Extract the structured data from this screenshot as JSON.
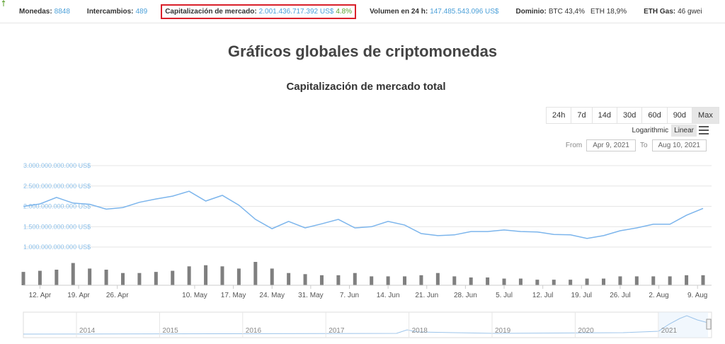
{
  "header": {
    "items": [
      {
        "label": "Monedas:",
        "value": "8848",
        "value_color": "#4a9fd8"
      },
      {
        "label": "Intercambios:",
        "value": "489",
        "value_color": "#4a9fd8"
      },
      {
        "label": "Capitalización de mercado:",
        "value": "2.001.436.717.392 US$",
        "change": "4.8%",
        "value_color": "#4a9fd8",
        "highlighted": true
      },
      {
        "label": "Volumen en 24 h:",
        "value": "147.485.543.096 US$",
        "value_color": "#4a9fd8"
      },
      {
        "label": "Dominio:",
        "value": "BTC 43,4%",
        "value2": "ETH 18,9%",
        "value_color": "#333333"
      },
      {
        "label": "ETH Gas:",
        "value": "46 gwei",
        "value_color": "#333333"
      }
    ]
  },
  "page_title": "Gráficos globales de criptomonedas",
  "chart_data": {
    "type": "line",
    "title": "Capitalización de mercado total",
    "ranges": [
      {
        "label": "24h",
        "active": false
      },
      {
        "label": "7d",
        "active": false
      },
      {
        "label": "14d",
        "active": false
      },
      {
        "label": "30d",
        "active": false
      },
      {
        "label": "60d",
        "active": false
      },
      {
        "label": "90d",
        "active": false
      },
      {
        "label": "Max",
        "active": true
      }
    ],
    "scales": [
      {
        "label": "Logarithmic",
        "active": false
      },
      {
        "label": "Linear",
        "active": true
      }
    ],
    "log_scale": false,
    "from_label": "From",
    "from": "Apr 9, 2021",
    "to_label": "To",
    "to": "Aug 10, 2021",
    "x": [
      "2021-04-09",
      "2021-04-12",
      "2021-04-15",
      "2021-04-18",
      "2021-04-21",
      "2021-04-24",
      "2021-04-27",
      "2021-04-30",
      "2021-05-03",
      "2021-05-06",
      "2021-05-09",
      "2021-05-12",
      "2021-05-15",
      "2021-05-18",
      "2021-05-21",
      "2021-05-24",
      "2021-05-27",
      "2021-05-30",
      "2021-06-02",
      "2021-06-05",
      "2021-06-08",
      "2021-06-11",
      "2021-06-14",
      "2021-06-17",
      "2021-06-20",
      "2021-06-23",
      "2021-06-26",
      "2021-06-29",
      "2021-07-02",
      "2021-07-05",
      "2021-07-08",
      "2021-07-11",
      "2021-07-14",
      "2021-07-17",
      "2021-07-20",
      "2021-07-23",
      "2021-07-26",
      "2021-07-29",
      "2021-08-01",
      "2021-08-04",
      "2021-08-07",
      "2021-08-10"
    ],
    "series": [
      {
        "color": "#7cb5ec",
        "values": [
          2000000000000,
          2060000000000,
          2220000000000,
          2080000000000,
          2050000000000,
          1930000000000,
          1970000000000,
          2100000000000,
          2180000000000,
          2250000000000,
          2370000000000,
          2130000000000,
          2270000000000,
          2030000000000,
          1680000000000,
          1450000000000,
          1630000000000,
          1470000000000,
          1570000000000,
          1680000000000,
          1470000000000,
          1500000000000,
          1630000000000,
          1540000000000,
          1330000000000,
          1280000000000,
          1300000000000,
          1380000000000,
          1380000000000,
          1420000000000,
          1380000000000,
          1370000000000,
          1310000000000,
          1300000000000,
          1210000000000,
          1280000000000,
          1400000000000,
          1470000000000,
          1560000000000,
          1560000000000,
          1780000000000,
          1950000000000
        ]
      }
    ],
    "volume": {
      "color": "#7f7f7f",
      "values": [
        120000000000,
        130000000000,
        140000000000,
        200000000000,
        150000000000,
        140000000000,
        110000000000,
        110000000000,
        120000000000,
        130000000000,
        170000000000,
        180000000000,
        170000000000,
        150000000000,
        210000000000,
        150000000000,
        110000000000,
        100000000000,
        90000000000,
        90000000000,
        110000000000,
        80000000000,
        80000000000,
        80000000000,
        90000000000,
        110000000000,
        80000000000,
        70000000000,
        70000000000,
        60000000000,
        60000000000,
        50000000000,
        50000000000,
        50000000000,
        60000000000,
        60000000000,
        80000000000,
        80000000000,
        80000000000,
        80000000000,
        90000000000,
        90000000000
      ]
    },
    "xlim": [
      "2021-04-09",
      "2021-08-10"
    ],
    "xticks": [
      {
        "value": "2021-04-12",
        "label": "12. Apr"
      },
      {
        "value": "2021-04-19",
        "label": "19. Apr"
      },
      {
        "value": "2021-04-26",
        "label": "26. Apr"
      },
      {
        "value": "2021-05-10",
        "label": "10. May"
      },
      {
        "value": "2021-05-17",
        "label": "17. May"
      },
      {
        "value": "2021-05-24",
        "label": "24. May"
      },
      {
        "value": "2021-05-31",
        "label": "31. May"
      },
      {
        "value": "2021-06-07",
        "label": "7. Jun"
      },
      {
        "value": "2021-06-14",
        "label": "14. Jun"
      },
      {
        "value": "2021-06-21",
        "label": "21. Jun"
      },
      {
        "value": "2021-06-28",
        "label": "28. Jun"
      },
      {
        "value": "2021-07-05",
        "label": "5. Jul"
      },
      {
        "value": "2021-07-12",
        "label": "12. Jul"
      },
      {
        "value": "2021-07-19",
        "label": "19. Jul"
      },
      {
        "value": "2021-07-26",
        "label": "26. Jul"
      },
      {
        "value": "2021-08-02",
        "label": "2. Aug"
      },
      {
        "value": "2021-08-09",
        "label": "9. Aug"
      }
    ],
    "ylim": [
      1000000000000,
      3000000000000
    ],
    "yticks": [
      {
        "value": 1000000000000,
        "label": "1.000.000.000.000 US$"
      },
      {
        "value": 1500000000000,
        "label": "1.500.000.000.000 US$"
      },
      {
        "value": 2000000000000,
        "label": "2.000.000.000.000 US$"
      },
      {
        "value": 2500000000000,
        "label": "2.500.000.000.000 US$"
      },
      {
        "value": 3000000000000,
        "label": "3.000.000.000.000 US$"
      }
    ],
    "grid": true,
    "navigator_labels": [
      "2014",
      "2015",
      "2016",
      "2017",
      "2018",
      "2019",
      "2020",
      "2021"
    ]
  }
}
